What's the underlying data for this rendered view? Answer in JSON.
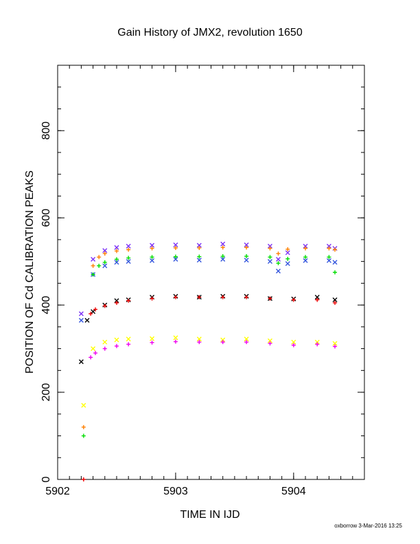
{
  "chart_data": {
    "type": "scatter",
    "title": "Gain History of JMX2, revolution 1650",
    "xlabel": "TIME IN IJD",
    "ylabel": "POSITION OF Cd CALIBRATION PEAKS",
    "xlim": [
      5902.0,
      5904.6
    ],
    "ylim": [
      0,
      950
    ],
    "x_ticks": [
      5902,
      5903,
      5904
    ],
    "x_tick_labels": [
      "5902",
      "5903",
      "5904"
    ],
    "y_ticks": [
      0,
      200,
      400,
      600,
      800
    ],
    "y_tick_labels": [
      "0",
      "200",
      "400",
      "600",
      "800"
    ],
    "grid": false,
    "footer": "oxborrow  3-Mar-2016 13:25",
    "series": [
      {
        "color": "#7b2ff7",
        "marker": "x",
        "x": [
          5902.2,
          5902.3,
          5902.4,
          5902.5,
          5902.6,
          5902.8,
          5903.0,
          5903.2,
          5903.4,
          5903.6,
          5903.8,
          5903.87,
          5903.95,
          5904.1,
          5904.3,
          5904.35
        ],
        "y": [
          380,
          505,
          525,
          532,
          535,
          537,
          538,
          537,
          540,
          538,
          535,
          505,
          520,
          535,
          535,
          530
        ]
      },
      {
        "color": "#3355dd",
        "marker": "x",
        "x": [
          5902.2,
          5902.3,
          5902.4,
          5902.5,
          5902.6,
          5902.8,
          5903.0,
          5903.2,
          5903.4,
          5903.6,
          5903.8,
          5903.87,
          5903.95,
          5904.1,
          5904.3,
          5904.35
        ],
        "y": [
          365,
          470,
          490,
          498,
          500,
          502,
          505,
          503,
          505,
          503,
          500,
          478,
          495,
          502,
          502,
          498
        ]
      },
      {
        "color": "#ff7f00",
        "marker": "+",
        "x": [
          5902.22,
          5902.3,
          5902.35,
          5902.4,
          5902.5,
          5902.6,
          5902.8,
          5903.0,
          5903.2,
          5903.4,
          5903.6,
          5903.8,
          5903.87,
          5903.95,
          5904.1,
          5904.3,
          5904.35
        ],
        "y": [
          120,
          490,
          510,
          518,
          524,
          527,
          530,
          531,
          531,
          532,
          532,
          530,
          518,
          528,
          530,
          530,
          527
        ]
      },
      {
        "color": "#00dd00",
        "marker": "+",
        "x": [
          5902.22,
          5902.3,
          5902.35,
          5902.4,
          5902.5,
          5902.6,
          5902.8,
          5903.0,
          5903.2,
          5903.4,
          5903.6,
          5903.8,
          5903.87,
          5903.95,
          5904.1,
          5904.3,
          5904.35
        ],
        "y": [
          100,
          470,
          490,
          498,
          505,
          508,
          510,
          511,
          511,
          512,
          512,
          510,
          496,
          506,
          510,
          510,
          475
        ]
      },
      {
        "color": "#000000",
        "marker": "x",
        "x": [
          5902.2,
          5902.25,
          5902.3,
          5902.4,
          5902.5,
          5902.6,
          5902.8,
          5903.0,
          5903.2,
          5903.4,
          5903.6,
          5903.8,
          5904.0,
          5904.2,
          5904.35
        ],
        "y": [
          270,
          365,
          385,
          400,
          410,
          412,
          418,
          420,
          418,
          420,
          420,
          415,
          414,
          418,
          412
        ]
      },
      {
        "color": "#ee0000",
        "marker": "+",
        "x": [
          5902.22,
          5902.28,
          5902.32,
          5902.4,
          5902.5,
          5902.6,
          5902.8,
          5903.0,
          5903.2,
          5903.4,
          5903.6,
          5903.8,
          5904.0,
          5904.2,
          5904.35
        ],
        "y": [
          0,
          380,
          390,
          398,
          405,
          410,
          415,
          418,
          418,
          418,
          418,
          415,
          412,
          412,
          405
        ]
      },
      {
        "color": "#ffff00",
        "marker": "x",
        "x": [
          5902.22,
          5902.3,
          5902.4,
          5902.5,
          5902.6,
          5902.8,
          5903.0,
          5903.2,
          5903.4,
          5903.6,
          5903.8,
          5904.0,
          5904.2,
          5904.35
        ],
        "y": [
          170,
          300,
          315,
          320,
          322,
          323,
          325,
          322,
          320,
          322,
          318,
          315,
          315,
          312
        ]
      },
      {
        "color": "#ee00ee",
        "marker": "+",
        "x": [
          5902.28,
          5902.32,
          5902.4,
          5902.5,
          5902.6,
          5902.8,
          5903.0,
          5903.2,
          5903.4,
          5903.6,
          5903.8,
          5904.0,
          5904.2,
          5904.35
        ],
        "y": [
          280,
          290,
          300,
          306,
          310,
          314,
          316,
          315,
          315,
          315,
          312,
          308,
          310,
          305
        ]
      }
    ]
  }
}
